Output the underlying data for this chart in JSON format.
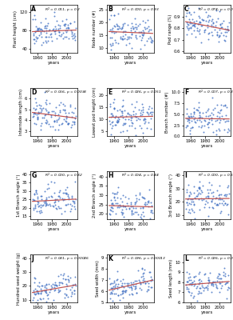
{
  "panels": [
    {
      "label": "A",
      "ylabel": "Plant height (cm)",
      "ylim": [
        30,
        135
      ],
      "yticks": [
        40,
        80,
        120
      ],
      "r2": "0.011",
      "p": "0.2",
      "scatter_mean_y": 78,
      "scatter_spread_y": 15,
      "slope_sign": 1
    },
    {
      "label": "B",
      "ylabel": "Node number (#)",
      "ylim": [
        8,
        27
      ],
      "yticks": [
        10,
        15,
        20,
        25
      ],
      "r2": "0.000",
      "p": "0.93",
      "scatter_mean_y": 16,
      "scatter_spread_y": 3.2,
      "slope_sign": 1
    },
    {
      "label": "C",
      "ylabel": "Pod range (%)",
      "ylim": [
        0.58,
        1.01
      ],
      "yticks": [
        0.6,
        0.7,
        0.8,
        0.9
      ],
      "r2": "0.074",
      "p": "0.00082",
      "scatter_mean_y": 0.82,
      "scatter_spread_y": 0.07,
      "slope_sign": -1
    },
    {
      "label": "D",
      "ylabel": "Internode length (cm)",
      "ylim": [
        2.5,
        7.0
      ],
      "yticks": [
        3,
        4,
        5,
        6
      ],
      "r2": "0.056",
      "p": "0.0038",
      "scatter_mean_y": 4.5,
      "scatter_spread_y": 0.65,
      "slope_sign": -1
    },
    {
      "label": "E",
      "ylabel": "Lowest pod height (cm)",
      "ylim": [
        3,
        23
      ],
      "yticks": [
        5,
        10,
        15,
        20
      ],
      "r2": "0.026",
      "p": "0.051",
      "scatter_mean_y": 11,
      "scatter_spread_y": 3.2,
      "slope_sign": 1
    },
    {
      "label": "F",
      "ylabel": "Branch number (#)",
      "ylim": [
        0,
        11
      ],
      "yticks": [
        0.0,
        2.5,
        5.0,
        7.5,
        10.0
      ],
      "r2": "0.007",
      "p": "0.32",
      "scatter_mean_y": 4.2,
      "scatter_spread_y": 1.8,
      "slope_sign": -1
    },
    {
      "label": "G",
      "ylabel": "1st Branch angle (°)",
      "ylim": [
        13,
        42
      ],
      "yticks": [
        15,
        20,
        25,
        30,
        35,
        40
      ],
      "r2": "0.000",
      "p": "0.82",
      "scatter_mean_y": 24,
      "scatter_spread_y": 4.5,
      "slope_sign": -1
    },
    {
      "label": "H",
      "ylabel": "2nd Branch angle (°)",
      "ylim": [
        17,
        43
      ],
      "yticks": [
        20,
        25,
        30,
        35,
        40
      ],
      "r2": "0.004",
      "p": "0.44",
      "scatter_mean_y": 23,
      "scatter_spread_y": 4.5,
      "slope_sign": 1
    },
    {
      "label": "I",
      "ylabel": "3rd Branch angle (°)",
      "ylim": [
        7,
        43
      ],
      "yticks": [
        10,
        20,
        30,
        40
      ],
      "r2": "0.000",
      "p": "0.54",
      "scatter_mean_y": 22,
      "scatter_spread_y": 6,
      "slope_sign": -1
    },
    {
      "label": "J",
      "ylabel": "Hundred seed weight (g)",
      "ylim": [
        8,
        43
      ],
      "yticks": [
        10,
        20,
        30,
        40
      ],
      "r2": "0.081",
      "p": "0.00046",
      "scatter_mean_y": 17,
      "scatter_spread_y": 4.5,
      "slope_sign": 1
    },
    {
      "label": "K",
      "ylabel": "Seed width (mm)",
      "ylim": [
        5.0,
        9.3
      ],
      "yticks": [
        5,
        6,
        7,
        8,
        9
      ],
      "r2": "0.096",
      "p": "0.00013",
      "scatter_mean_y": 6.5,
      "scatter_spread_y": 0.55,
      "slope_sign": 1
    },
    {
      "label": "L",
      "ylabel": "Seed length (mm)",
      "ylim": [
        6.0,
        10.8
      ],
      "yticks": [
        6,
        7,
        8,
        9,
        10
      ],
      "r2": "0.026",
      "p": "0.053",
      "scatter_mean_y": 7.9,
      "scatter_spread_y": 0.65,
      "slope_sign": 1
    }
  ],
  "x_min": 1950,
  "x_max": 2015,
  "x_data_min": 1953,
  "x_data_max": 2013,
  "xticks": [
    1960,
    1980,
    2000
  ],
  "xlabel": "years",
  "dot_color": "#4472C4",
  "line_color": "#C0504D",
  "n_points": 110,
  "seed": 42,
  "figsize": [
    2.92,
    4.0
  ],
  "dpi": 100
}
